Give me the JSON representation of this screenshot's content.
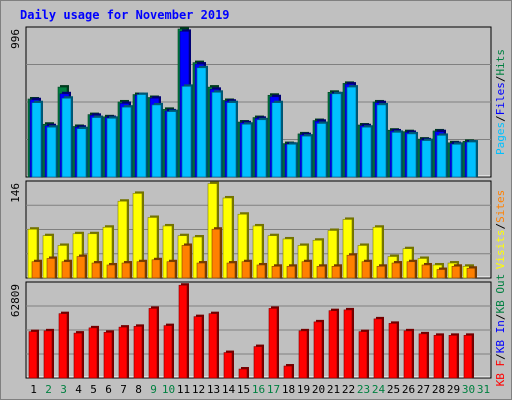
{
  "title": "Daily usage for November 2019",
  "colors": {
    "background": "#c0c0c0",
    "plot_bg": "#c0c0c0",
    "title": "#0000ff",
    "hits": "#008040",
    "files": "#0000ff",
    "pages": "#00c0ff",
    "visits": "#ffff00",
    "sites": "#ff8000",
    "kbytes": "#ff0000",
    "kb_in": "#0000ff",
    "kb_out": "#008040",
    "weekend_label": "#008040",
    "weekday_label": "#000000"
  },
  "chart_data": [
    {
      "type": "bar",
      "panel": "top",
      "ytick_label": "996",
      "ylim": [
        0,
        996
      ],
      "grid": true,
      "side_legend": [
        {
          "text": "Pages",
          "color": "#00c0ff"
        },
        {
          "text": "/",
          "color": "#000000"
        },
        {
          "text": "Files",
          "color": "#0000ff"
        },
        {
          "text": "/",
          "color": "#000000"
        },
        {
          "text": "Hits",
          "color": "#008040"
        }
      ],
      "categories": [
        "1",
        "2",
        "3",
        "4",
        "5",
        "6",
        "7",
        "8",
        "9",
        "10",
        "11",
        "12",
        "13",
        "14",
        "15",
        "16",
        "17",
        "18",
        "19",
        "20",
        "21",
        "22",
        "23",
        "24",
        "25",
        "26",
        "27",
        "28",
        "29",
        "30",
        "31"
      ],
      "series": [
        {
          "name": "Hits",
          "values": [
            525,
            355,
            605,
            340,
            420,
            405,
            505,
            555,
            535,
            455,
            996,
            770,
            605,
            515,
            370,
            400,
            550,
            225,
            290,
            380,
            570,
            630,
            350,
            505,
            315,
            305,
            255,
            310,
            230,
            240,
            null
          ]
        },
        {
          "name": "Files",
          "values": [
            520,
            345,
            560,
            335,
            415,
            400,
            495,
            550,
            530,
            445,
            980,
            760,
            590,
            510,
            365,
            395,
            540,
            220,
            285,
            375,
            560,
            625,
            345,
            500,
            310,
            300,
            250,
            305,
            225,
            235,
            null
          ]
        },
        {
          "name": "Pages",
          "values": [
            500,
            335,
            530,
            325,
            400,
            395,
            470,
            555,
            485,
            440,
            610,
            735,
            570,
            500,
            355,
            385,
            500,
            220,
            275,
            360,
            560,
            605,
            335,
            485,
            300,
            290,
            245,
            280,
            220,
            235,
            null
          ]
        }
      ]
    },
    {
      "type": "bar",
      "panel": "middle",
      "ytick_label": "146",
      "ylim": [
        0,
        146
      ],
      "grid": true,
      "side_legend": [
        {
          "text": "Visits",
          "color": "#ffff00"
        },
        {
          "text": "/",
          "color": "#000000"
        },
        {
          "text": "Sites",
          "color": "#ff8000"
        }
      ],
      "categories": [
        "1",
        "2",
        "3",
        "4",
        "5",
        "6",
        "7",
        "8",
        "9",
        "10",
        "11",
        "12",
        "13",
        "14",
        "15",
        "16",
        "17",
        "18",
        "19",
        "20",
        "21",
        "22",
        "23",
        "24",
        "25",
        "26",
        "27",
        "28",
        "29",
        "30",
        "31"
      ],
      "series": [
        {
          "name": "Visits",
          "values": [
            75,
            65,
            50,
            68,
            68,
            78,
            118,
            130,
            93,
            80,
            65,
            63,
            145,
            123,
            98,
            80,
            65,
            60,
            50,
            58,
            73,
            90,
            50,
            78,
            33,
            45,
            30,
            20,
            23,
            18,
            null
          ]
        },
        {
          "name": "Sites",
          "values": [
            25,
            30,
            25,
            33,
            23,
            20,
            23,
            25,
            28,
            25,
            50,
            23,
            75,
            23,
            25,
            20,
            18,
            18,
            25,
            18,
            18,
            35,
            25,
            18,
            23,
            25,
            20,
            13,
            18,
            15,
            null
          ]
        }
      ]
    },
    {
      "type": "bar",
      "panel": "bottom",
      "ytick_label": "62809",
      "ylim": [
        0,
        62809
      ],
      "grid": true,
      "side_legend": [
        {
          "text": "KB F",
          "color": "#ff0000"
        },
        {
          "text": "/",
          "color": "#000000"
        },
        {
          "text": "KB In",
          "color": "#0000ff"
        },
        {
          "text": "/",
          "color": "#000000"
        },
        {
          "text": "KB Out",
          "color": "#008040"
        }
      ],
      "categories": [
        "1",
        "2",
        "3",
        "4",
        "5",
        "6",
        "7",
        "8",
        "9",
        "10",
        "11",
        "12",
        "13",
        "14",
        "15",
        "16",
        "17",
        "18",
        "19",
        "20",
        "21",
        "22",
        "23",
        "24",
        "25",
        "26",
        "27",
        "28",
        "29",
        "30",
        "31"
      ],
      "series": [
        {
          "name": "KB F",
          "values": [
            31000,
            31500,
            43000,
            30000,
            33500,
            30500,
            34000,
            34500,
            46500,
            35000,
            62000,
            41000,
            43000,
            17000,
            6000,
            21000,
            46500,
            8000,
            31500,
            37500,
            45000,
            45500,
            31000,
            39500,
            36500,
            31500,
            29500,
            28500,
            28500,
            28500,
            null
          ]
        }
      ]
    }
  ]
}
